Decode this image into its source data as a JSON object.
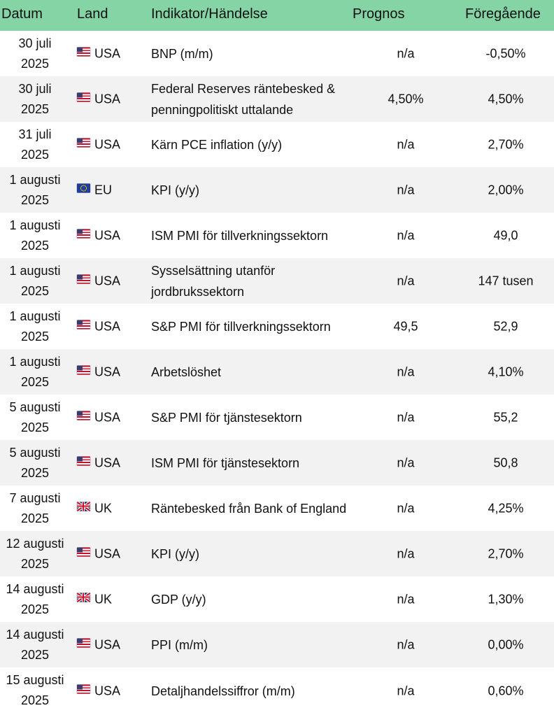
{
  "header": {
    "date": "Datum",
    "country": "Land",
    "indicator": "Indikator/Händelse",
    "forecast": "Prognos",
    "previous": "Föregående"
  },
  "colors": {
    "header_bg": "#84d4a6",
    "alt_row_bg": "#f2f2f2"
  },
  "rows": [
    {
      "date_day": "30 juli",
      "date_year": "2025",
      "flag": "us-flag-icon",
      "country": "USA",
      "indicator": "BNP (m/m)",
      "forecast": "n/a",
      "previous": "-0,50%"
    },
    {
      "date_day": "30 juli",
      "date_year": "2025",
      "flag": "us-flag-icon",
      "country": "USA",
      "indicator": "Federal Reserves räntebesked & penningpolitiskt uttalande",
      "forecast": "4,50%",
      "previous": "4,50%"
    },
    {
      "date_day": "31 juli",
      "date_year": "2025",
      "flag": "us-flag-icon",
      "country": "USA",
      "indicator": "Kärn PCE inflation (y/y)",
      "forecast": "n/a",
      "previous": "2,70%"
    },
    {
      "date_day": "1 augusti",
      "date_year": "2025",
      "flag": "eu-flag-icon",
      "country": "EU",
      "indicator": "KPI (y/y)",
      "forecast": "n/a",
      "previous": "2,00%"
    },
    {
      "date_day": "1 augusti",
      "date_year": "2025",
      "flag": "us-flag-icon",
      "country": "USA",
      "indicator": "ISM PMI för tillverkningssektorn",
      "forecast": "n/a",
      "previous": "49,0"
    },
    {
      "date_day": "1 augusti",
      "date_year": "2025",
      "flag": "us-flag-icon",
      "country": "USA",
      "indicator": "Sysselsättning utanför jordbrukssektorn",
      "forecast": "n/a",
      "previous": "147 tusen"
    },
    {
      "date_day": "1 augusti",
      "date_year": "2025",
      "flag": "us-flag-icon",
      "country": "USA",
      "indicator": "S&P PMI för tillverkningssektorn",
      "forecast": "49,5",
      "previous": "52,9"
    },
    {
      "date_day": "1 augusti",
      "date_year": "2025",
      "flag": "us-flag-icon",
      "country": "USA",
      "indicator": "Arbetslöshet",
      "forecast": "n/a",
      "previous": "4,10%"
    },
    {
      "date_day": "5 augusti",
      "date_year": "2025",
      "flag": "us-flag-icon",
      "country": "USA",
      "indicator": "S&P PMI för tjänstesektorn",
      "forecast": "n/a",
      "previous": "55,2"
    },
    {
      "date_day": "5 augusti",
      "date_year": "2025",
      "flag": "us-flag-icon",
      "country": "USA",
      "indicator": "ISM PMI för tjänstesektorn",
      "forecast": "n/a",
      "previous": "50,8"
    },
    {
      "date_day": "7 augusti",
      "date_year": "2025",
      "flag": "uk-flag-icon",
      "country": "UK",
      "indicator": "Räntebesked från Bank of England",
      "forecast": "n/a",
      "previous": "4,25%"
    },
    {
      "date_day": "12 augusti",
      "date_year": "2025",
      "flag": "us-flag-icon",
      "country": "USA",
      "indicator": "KPI (y/y)",
      "forecast": "n/a",
      "previous": "2,70%"
    },
    {
      "date_day": "14 augusti",
      "date_year": "2025",
      "flag": "uk-flag-icon",
      "country": "UK",
      "indicator": "GDP (y/y)",
      "forecast": "n/a",
      "previous": "1,30%"
    },
    {
      "date_day": "14 augusti",
      "date_year": "2025",
      "flag": "us-flag-icon",
      "country": "USA",
      "indicator": "PPI (m/m)",
      "forecast": "n/a",
      "previous": "0,00%"
    },
    {
      "date_day": "15 augusti",
      "date_year": "2025",
      "flag": "us-flag-icon",
      "country": "USA",
      "indicator": "Detaljhandelssiffror  (m/m)",
      "forecast": "n/a",
      "previous": "0,60%"
    }
  ]
}
